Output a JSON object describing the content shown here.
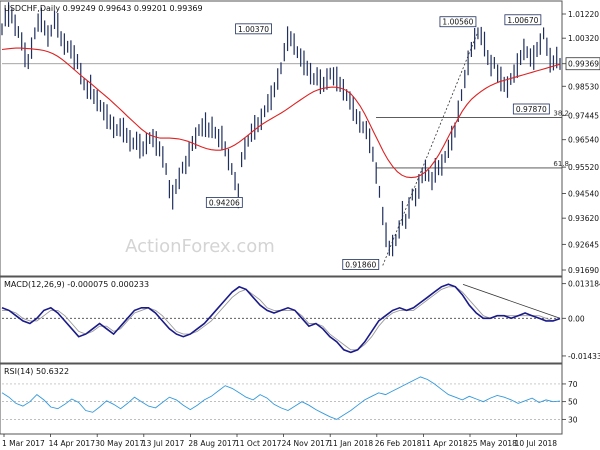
{
  "chart_data": {
    "type": "line",
    "title": "USDCHF,Daily  0.99249 0.99643 0.99201 0.99369",
    "xlabel": "",
    "ylabel": "",
    "watermark": "ActionForex.com",
    "x_ticks": [
      "1 Mar 2017",
      "14 Apr 2017",
      "30 May 2017",
      "13 Jul 2017",
      "28 Aug 2017",
      "11 Oct 2017",
      "24 Nov 2017",
      "11 Jan 2018",
      "26 Feb 2018",
      "11 Apr 2018",
      "25 May 2018",
      "10 Jul 2018"
    ],
    "price": {
      "y_ticks": [
        "1.01220",
        "1.00320",
        "0.99369",
        "0.98530",
        "0.97445",
        "0.96540",
        "0.95520",
        "0.94540",
        "0.93620",
        "0.92645",
        "0.91690"
      ],
      "ylim": [
        0.9169,
        1.0122
      ],
      "current_price": 0.99369,
      "current_price_label": "0.99369",
      "series": [
        {
          "type": "bars",
          "color": "#1f2f5f",
          "values": [
            1.0065,
            1.011,
            1.012,
            1.0115,
            1.008,
            1.0055,
            1.002,
            0.997,
            0.9945,
            0.9995,
            1.005,
            1.009,
            1.01,
            1.007,
            1.004,
            1.006,
            1.01,
            1.008,
            1.003,
            1.001,
            1.0,
            0.999,
            0.996,
            0.9945,
            0.99,
            0.986,
            0.984,
            0.985,
            0.9815,
            0.98,
            0.978,
            0.976,
            0.974,
            0.972,
            0.97,
            0.969,
            0.97,
            0.969,
            0.967,
            0.965,
            0.964,
            0.965,
            0.963,
            0.962,
            0.964,
            0.966,
            0.966,
            0.964,
            0.962,
            0.959,
            0.9545,
            0.947,
            0.944,
            0.948,
            0.951,
            0.955,
            0.956,
            0.96,
            0.964,
            0.966,
            0.969,
            0.97,
            0.971,
            0.969,
            0.97,
            0.968,
            0.966,
            0.966,
            0.962,
            0.958,
            0.9545,
            0.95,
            0.9445,
            0.958,
            0.962,
            0.965,
            0.968,
            0.97,
            0.971,
            0.973,
            0.976,
            0.979,
            0.981,
            0.984,
            0.988,
            0.992,
            0.998,
            1.003,
            1.003,
            1.001,
            0.998,
            0.996,
            0.994,
            0.992,
            0.99,
            0.988,
            0.989,
            0.987,
            0.986,
            0.988,
            0.99,
            0.989,
            0.988,
            0.986,
            0.984,
            0.982,
            0.98,
            0.977,
            0.974,
            0.972,
            0.97,
            0.969,
            0.965,
            0.96,
            0.953,
            0.946,
            0.937,
            0.93,
            0.925,
            0.926,
            0.928,
            0.932,
            0.938,
            0.935,
            0.94,
            0.945,
            0.944,
            0.948,
            0.952,
            0.954,
            0.952,
            0.95,
            0.954,
            0.955,
            0.956,
            0.959,
            0.962,
            0.966,
            0.969,
            0.976,
            0.982,
            0.988,
            0.994,
            0.999,
            1.003,
            1.005,
            1.004,
            1.001,
            0.996,
            0.993,
            0.994,
            0.99,
            0.988,
            0.986,
            0.985,
            0.988,
            0.99,
            0.993,
            0.996,
            0.999,
            0.998,
            0.996,
            0.996,
            0.999,
            1.001,
            1.005,
            1.0,
            0.995,
            0.994,
            0.996,
            0.9936
          ]
        },
        {
          "name": "",
          "type": "line",
          "color": "#dd2222",
          "values": [
            0.999,
            0.9992,
            0.9994,
            0.9995,
            0.9995,
            0.9994,
            0.9993,
            0.9991,
            0.9989,
            0.9986,
            0.9981,
            0.9974,
            0.9964,
            0.9952,
            0.9938,
            0.9923,
            0.9908,
            0.9893,
            0.9879,
            0.9865,
            0.985,
            0.9835,
            0.9821,
            0.9806,
            0.979,
            0.9774,
            0.9758,
            0.9741,
            0.9725,
            0.9709,
            0.9693,
            0.968,
            0.967,
            0.9664,
            0.966,
            0.966,
            0.966,
            0.9659,
            0.9657,
            0.9653,
            0.9648,
            0.9641,
            0.9634,
            0.9627,
            0.9621,
            0.9617,
            0.9615,
            0.9615,
            0.9619,
            0.9625,
            0.9634,
            0.9645,
            0.9658,
            0.9672,
            0.9686,
            0.97,
            0.9712,
            0.9723,
            0.9733,
            0.9743,
            0.9753,
            0.9764,
            0.9776,
            0.9788,
            0.98,
            0.9812,
            0.9823,
            0.9833,
            0.984,
            0.9845,
            0.9848,
            0.985,
            0.9849,
            0.9845,
            0.9838,
            0.9825,
            0.9805,
            0.978,
            0.975,
            0.9715,
            0.968,
            0.9645,
            0.961,
            0.958,
            0.9555,
            0.9535,
            0.9522,
            0.9515,
            0.9513,
            0.9515,
            0.9522,
            0.9533,
            0.955,
            0.9573,
            0.96,
            0.9632,
            0.9665,
            0.9698,
            0.973,
            0.976,
            0.9785,
            0.9805,
            0.982,
            0.9833,
            0.9845,
            0.9855,
            0.9863,
            0.987,
            0.9875,
            0.988,
            0.9885,
            0.989,
            0.9895,
            0.99,
            0.9905,
            0.991,
            0.9915,
            0.992,
            0.9925,
            0.993,
            0.9935
          ]
        }
      ],
      "annotations": [
        {
          "label": "1.00370",
          "x_index": 87,
          "y": 1.0037
        },
        {
          "label": "0.94206",
          "x_index": 72,
          "y": 0.94206
        },
        {
          "label": "0.91860",
          "x_index": 116,
          "y": 0.9186
        },
        {
          "label": "1.00560",
          "x_index": 145,
          "y": 1.0056
        },
        {
          "label": "1.00670",
          "x_index": 166,
          "y": 1.0067
        },
        {
          "label": "0.97870",
          "x_index": 157,
          "y": 0.9787
        }
      ],
      "fib_levels": [
        {
          "label": "38.2",
          "y": 0.9737
        },
        {
          "label": "61.8",
          "y": 0.9549
        }
      ]
    },
    "macd": {
      "title": "MACD(12,26,9) -0.000075 0.000233",
      "y_ticks": [
        "0.013184",
        "0.00",
        "-0.014339"
      ],
      "ylim": [
        -0.0155,
        0.0142
      ],
      "series": [
        {
          "name": "",
          "color": "#1a1a8a",
          "values": [
            0.004,
            0.003,
            0.001,
            -0.001,
            -0.002,
            0.0,
            0.003,
            0.004,
            0.002,
            -0.001,
            -0.004,
            -0.007,
            -0.006,
            -0.004,
            -0.002,
            -0.004,
            -0.006,
            -0.003,
            0.0,
            0.003,
            0.004,
            0.004,
            0.002,
            -0.001,
            -0.004,
            -0.006,
            -0.007,
            -0.006,
            -0.004,
            -0.002,
            0.001,
            0.004,
            0.007,
            0.01,
            0.012,
            0.011,
            0.008,
            0.005,
            0.003,
            0.002,
            0.003,
            0.004,
            0.003,
            0.0,
            -0.003,
            -0.002,
            -0.004,
            -0.007,
            -0.009,
            -0.012,
            -0.013,
            -0.012,
            -0.009,
            -0.005,
            -0.001,
            0.001,
            0.003,
            0.004,
            0.003,
            0.004,
            0.006,
            0.008,
            0.01,
            0.012,
            0.013,
            0.012,
            0.009,
            0.005,
            0.002,
            0.0,
            0.0,
            0.001,
            0.001,
            0.0,
            0.001,
            0.002,
            0.001,
            0.0,
            -0.001,
            -0.001,
            -0.0001
          ]
        },
        {
          "name": "",
          "color": "#999999",
          "values": [
            0.003,
            0.003,
            0.002,
            0.0,
            -0.001,
            -0.001,
            0.001,
            0.003,
            0.003,
            0.001,
            -0.002,
            -0.005,
            -0.006,
            -0.005,
            -0.003,
            -0.003,
            -0.005,
            -0.004,
            -0.001,
            0.002,
            0.003,
            0.004,
            0.003,
            0.001,
            -0.002,
            -0.005,
            -0.006,
            -0.006,
            -0.005,
            -0.003,
            -0.001,
            0.002,
            0.005,
            0.008,
            0.01,
            0.011,
            0.009,
            0.007,
            0.004,
            0.003,
            0.003,
            0.003,
            0.003,
            0.001,
            -0.002,
            -0.002,
            -0.003,
            -0.006,
            -0.008,
            -0.01,
            -0.012,
            -0.012,
            -0.01,
            -0.007,
            -0.003,
            0.0,
            0.002,
            0.003,
            0.003,
            0.003,
            0.005,
            0.007,
            0.009,
            0.011,
            0.012,
            0.012,
            0.01,
            0.007,
            0.004,
            0.001,
            0.0,
            0.001,
            0.001,
            0.001,
            0.001,
            0.001,
            0.001,
            0.001,
            0.0,
            -0.001,
            0.0002
          ]
        }
      ]
    },
    "rsi": {
      "title": "RSI(14) 50.6322",
      "y_ticks": [
        "70",
        "50",
        "30"
      ],
      "ylim": [
        18,
        88
      ],
      "levels": [
        70,
        50,
        30
      ],
      "series": [
        {
          "name": "",
          "color": "#3399dd",
          "values": [
            60,
            55,
            48,
            45,
            50,
            58,
            52,
            44,
            42,
            47,
            53,
            49,
            40,
            38,
            44,
            51,
            47,
            42,
            48,
            55,
            50,
            45,
            43,
            49,
            55,
            52,
            46,
            41,
            46,
            52,
            56,
            62,
            68,
            65,
            60,
            55,
            52,
            58,
            54,
            47,
            43,
            40,
            45,
            50,
            46,
            41,
            37,
            33,
            30,
            35,
            40,
            46,
            52,
            56,
            60,
            58,
            62,
            66,
            70,
            74,
            78,
            75,
            70,
            64,
            58,
            55,
            52,
            56,
            53,
            50,
            54,
            57,
            55,
            52,
            48,
            51,
            54,
            49,
            52,
            50,
            50.6
          ]
        }
      ]
    }
  }
}
